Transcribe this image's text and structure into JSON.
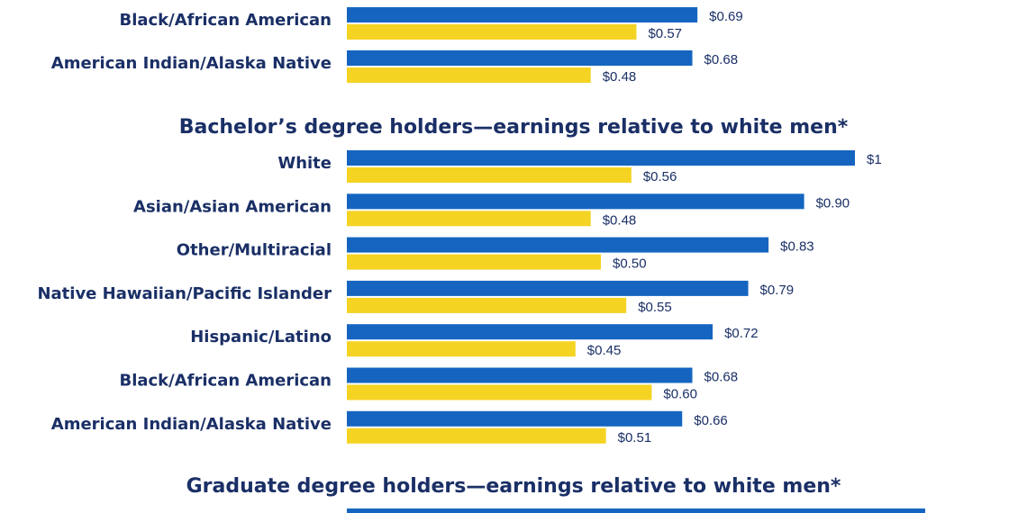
{
  "colors": {
    "series_1": "#1565c0",
    "series_2": "#f5d323",
    "text": "#1a2f66",
    "background": "#ffffff"
  },
  "chart_data": [
    {
      "type": "bar",
      "orientation": "horizontal",
      "title": "",
      "categories": [
        "Black/African American",
        "American Indian/Alaska Native"
      ],
      "series": [
        {
          "values": [
            0.69,
            0.68
          ],
          "labels": [
            "$0.69",
            "$0.68"
          ]
        },
        {
          "values": [
            0.57,
            0.48
          ],
          "labels": [
            "$0.57",
            "$0.48"
          ]
        }
      ],
      "xlim": [
        0,
        1
      ]
    },
    {
      "type": "bar",
      "orientation": "horizontal",
      "title": "Bachelor’s degree holders—earnings relative to white men*",
      "categories": [
        "White",
        "Asian/Asian American",
        "Other/Multiracial",
        "Native Hawaiian/Pacific Islander",
        "Hispanic/Latino",
        "Black/African American",
        "American Indian/Alaska Native"
      ],
      "series": [
        {
          "values": [
            1,
            0.9,
            0.83,
            0.79,
            0.72,
            0.68,
            0.66
          ],
          "labels": [
            "$1",
            "$0.90",
            "$0.83",
            "$0.79",
            "$0.72",
            "$0.68",
            "$0.66"
          ]
        },
        {
          "values": [
            0.56,
            0.48,
            0.5,
            0.55,
            0.45,
            0.6,
            0.51
          ],
          "labels": [
            "$0.56",
            "$0.48",
            "$0.50",
            "$0.55",
            "$0.45",
            "$0.60",
            "$0.51"
          ]
        }
      ],
      "xlim": [
        0,
        1
      ]
    },
    {
      "type": "bar",
      "orientation": "horizontal",
      "title": "Graduate degree holders—earnings relative to white men*",
      "categories": [],
      "series": [
        {
          "values": []
        },
        {
          "values": []
        }
      ],
      "xlim": [
        0,
        1
      ]
    }
  ]
}
